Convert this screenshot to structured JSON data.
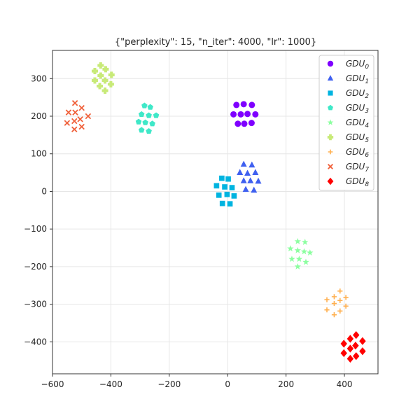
{
  "chart_data": {
    "type": "scatter",
    "title": "{\"perplexity\": 15, \"n_iter\": 4000, \"lr\": 1000}",
    "xlabel": "",
    "ylabel": "",
    "xlim": [
      -600,
      515
    ],
    "ylim": [
      -485,
      375
    ],
    "xticks": [
      -600,
      -400,
      -200,
      0,
      200,
      400
    ],
    "yticks": [
      -400,
      -300,
      -200,
      -100,
      0,
      100,
      200,
      300
    ],
    "xtick_labels": [
      "−600",
      "−400",
      "−200",
      "0",
      "200",
      "400"
    ],
    "ytick_labels": [
      "−400",
      "−300",
      "−200",
      "−100",
      "0",
      "100",
      "200",
      "300"
    ],
    "grid": true,
    "legend_position": "top-right",
    "series": [
      {
        "name": "GDU",
        "sub": "0",
        "color": "#7f00ff",
        "marker": "circle",
        "points": [
          [
            30,
            230
          ],
          [
            55,
            232
          ],
          [
            83,
            230
          ],
          [
            20,
            205
          ],
          [
            45,
            205
          ],
          [
            68,
            206
          ],
          [
            95,
            205
          ],
          [
            35,
            180
          ],
          [
            57,
            180
          ],
          [
            82,
            182
          ]
        ]
      },
      {
        "name": "GDU",
        "sub": "1",
        "color": "#3f60f0",
        "marker": "triangle",
        "points": [
          [
            55,
            72
          ],
          [
            83,
            70
          ],
          [
            42,
            50
          ],
          [
            68,
            48
          ],
          [
            95,
            50
          ],
          [
            55,
            28
          ],
          [
            78,
            28
          ],
          [
            105,
            27
          ],
          [
            62,
            5
          ],
          [
            90,
            3
          ]
        ]
      },
      {
        "name": "GDU",
        "sub": "2",
        "color": "#00b4e0",
        "marker": "square",
        "points": [
          [
            -20,
            35
          ],
          [
            2,
            33
          ],
          [
            -38,
            15
          ],
          [
            -10,
            12
          ],
          [
            15,
            10
          ],
          [
            -30,
            -10
          ],
          [
            -2,
            -8
          ],
          [
            22,
            -12
          ],
          [
            -18,
            -32
          ],
          [
            8,
            -33
          ]
        ]
      },
      {
        "name": "GDU",
        "sub": "3",
        "color": "#3fe8c8",
        "marker": "pentagon",
        "points": [
          [
            -285,
            228
          ],
          [
            -265,
            224
          ],
          [
            -295,
            205
          ],
          [
            -270,
            202
          ],
          [
            -245,
            202
          ],
          [
            -305,
            185
          ],
          [
            -282,
            183
          ],
          [
            -258,
            180
          ],
          [
            -295,
            163
          ],
          [
            -270,
            160
          ]
        ]
      },
      {
        "name": "GDU",
        "sub": "4",
        "color": "#8cffa0",
        "marker": "star",
        "points": [
          [
            240,
            -133
          ],
          [
            265,
            -135
          ],
          [
            215,
            -152
          ],
          [
            240,
            -157
          ],
          [
            262,
            -160
          ],
          [
            282,
            -163
          ],
          [
            220,
            -180
          ],
          [
            245,
            -180
          ],
          [
            268,
            -188
          ],
          [
            240,
            -200
          ]
        ]
      },
      {
        "name": "GDU",
        "sub": "5",
        "color": "#c8ea78",
        "marker": "plus",
        "points": [
          [
            -435,
            335
          ],
          [
            -418,
            325
          ],
          [
            -455,
            320
          ],
          [
            -435,
            308
          ],
          [
            -398,
            310
          ],
          [
            -420,
            295
          ],
          [
            -455,
            295
          ],
          [
            -400,
            285
          ],
          [
            -438,
            280
          ],
          [
            -420,
            268
          ]
        ]
      },
      {
        "name": "GDU",
        "sub": "6",
        "color": "#ffb050",
        "marker": "plus-thin",
        "points": [
          [
            385,
            -265
          ],
          [
            365,
            -280
          ],
          [
            405,
            -282
          ],
          [
            340,
            -288
          ],
          [
            385,
            -290
          ],
          [
            365,
            -298
          ],
          [
            405,
            -305
          ],
          [
            340,
            -315
          ],
          [
            385,
            -318
          ],
          [
            365,
            -328
          ]
        ]
      },
      {
        "name": "GDU",
        "sub": "7",
        "color": "#f0603a",
        "marker": "x",
        "points": [
          [
            -523,
            235
          ],
          [
            -500,
            222
          ],
          [
            -545,
            210
          ],
          [
            -522,
            210
          ],
          [
            -478,
            200
          ],
          [
            -505,
            192
          ],
          [
            -525,
            187
          ],
          [
            -550,
            182
          ],
          [
            -500,
            172
          ],
          [
            -525,
            165
          ]
        ]
      },
      {
        "name": "GDU",
        "sub": "8",
        "color": "#ff0000",
        "marker": "diamond",
        "points": [
          [
            440,
            -382
          ],
          [
            420,
            -392
          ],
          [
            462,
            -398
          ],
          [
            398,
            -405
          ],
          [
            438,
            -410
          ],
          [
            420,
            -418
          ],
          [
            462,
            -425
          ],
          [
            398,
            -430
          ],
          [
            440,
            -438
          ],
          [
            420,
            -445
          ]
        ]
      }
    ]
  }
}
